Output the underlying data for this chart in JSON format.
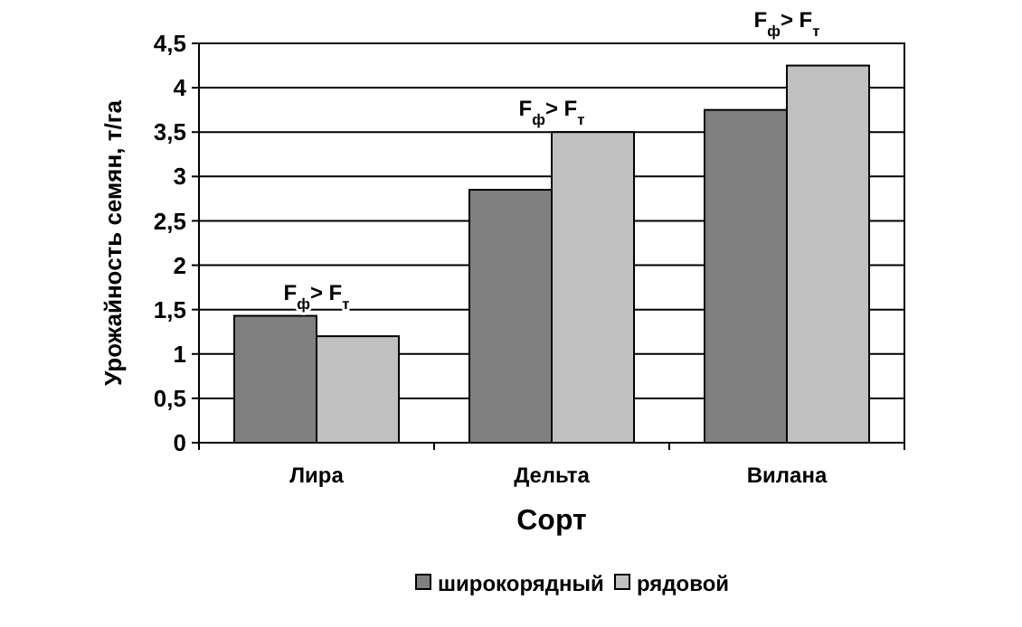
{
  "chart_data": {
    "type": "bar",
    "xlabel": "Сорт",
    "ylabel": "Урожайность семян, т/га",
    "categories": [
      "Лира",
      "Дельта",
      "Вилана"
    ],
    "series": [
      {
        "name": "широкорядный",
        "color": "#808080",
        "values": [
          1.43,
          2.85,
          3.75
        ]
      },
      {
        "name": "рядовой",
        "color": "#c0c0c0",
        "values": [
          1.2,
          3.5,
          4.25
        ]
      }
    ],
    "ylim": [
      0,
      4.5
    ],
    "yticks": [
      0,
      {
        "value": 0.5,
        "label": "0,5"
      },
      1,
      {
        "value": 1.5,
        "label": "1,5"
      },
      2,
      {
        "value": 2.5,
        "label": "2,5"
      },
      3,
      {
        "value": 3.5,
        "label": "3,5"
      },
      4,
      {
        "value": 4.5,
        "label": "4,5"
      }
    ],
    "grid": "y",
    "legend": "bottom",
    "annotations": [
      "F$_{ф}$> F$_{т}$",
      "F$_{ф}$> F$_{т}$",
      "F$_{ф}$> F$_{т}$"
    ]
  }
}
